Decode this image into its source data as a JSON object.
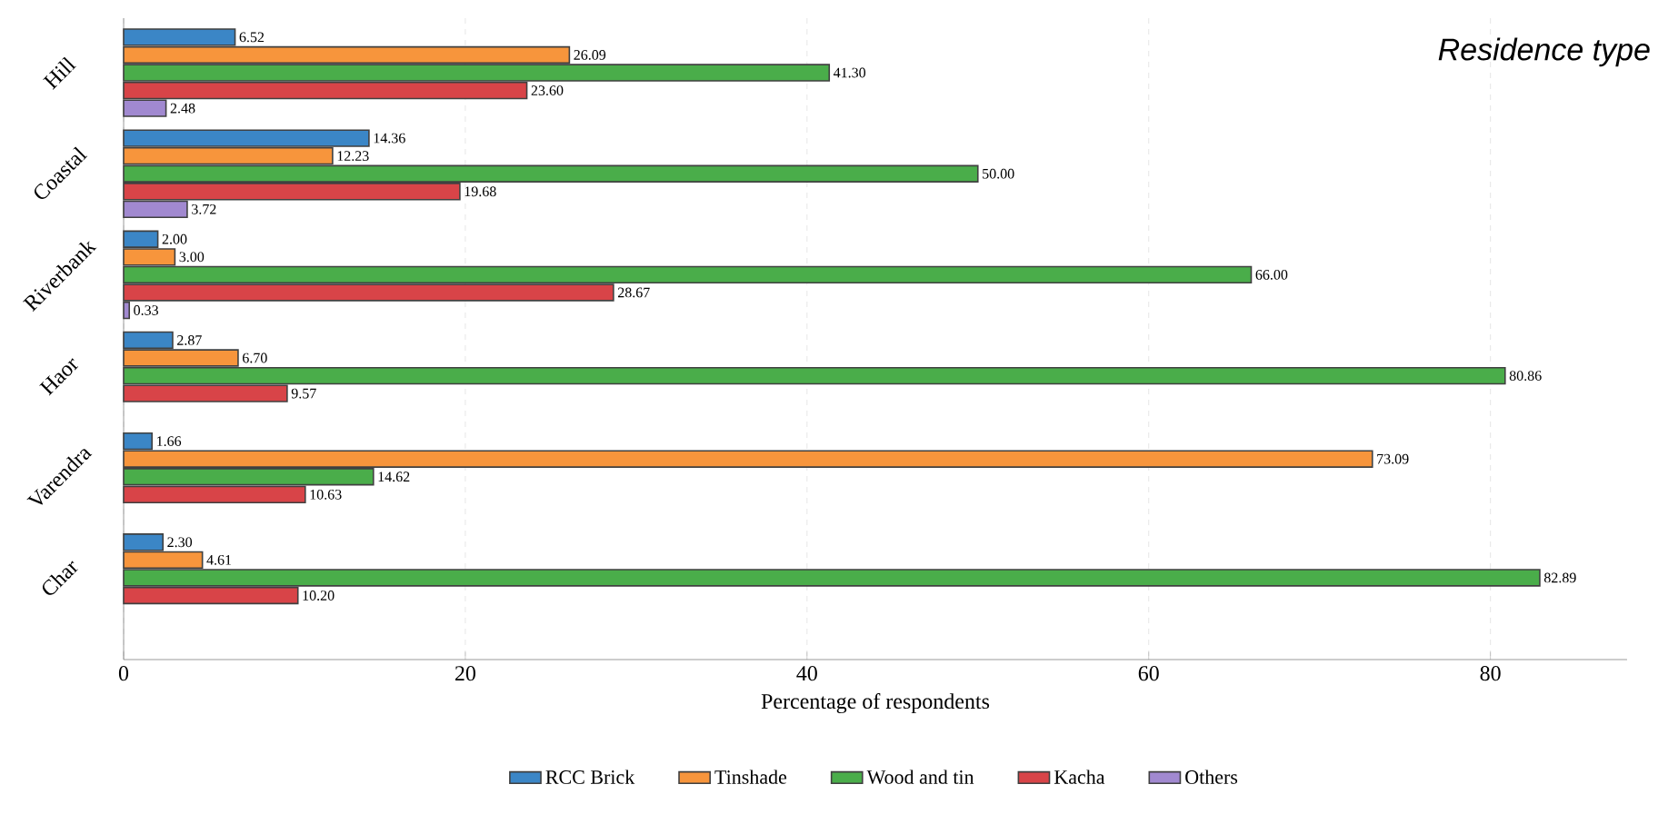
{
  "chart_data": {
    "type": "bar",
    "orientation": "horizontal",
    "title": "Residence type",
    "xlabel": "Percentage of respondents",
    "categories": [
      "Hill",
      "Coastal",
      "Riverbank",
      "Haor",
      "Varendra",
      "Char"
    ],
    "series": [
      {
        "name": "RCC Brick",
        "color": "#3b86c6",
        "values": [
          6.52,
          14.36,
          2.0,
          2.87,
          1.66,
          2.3
        ],
        "value_labels": [
          "6.52",
          "14.36",
          "2.00",
          "2.87",
          "1.66",
          "2.30"
        ]
      },
      {
        "name": "Tinshade",
        "color": "#f7953c",
        "values": [
          26.09,
          12.23,
          3.0,
          6.7,
          73.09,
          4.61
        ],
        "value_labels": [
          "26.09",
          "12.23",
          "3.00",
          "6.70",
          "73.09",
          "4.61"
        ]
      },
      {
        "name": "Wood and tin",
        "color": "#4aad4a",
        "values": [
          41.3,
          50.0,
          66.0,
          80.86,
          14.62,
          82.89
        ],
        "value_labels": [
          "41.30",
          "50.00",
          "66.00",
          "80.86",
          "14.62",
          "82.89"
        ]
      },
      {
        "name": "Kacha",
        "color": "#d84448",
        "values": [
          23.6,
          19.68,
          28.67,
          9.57,
          10.63,
          10.2
        ],
        "value_labels": [
          "23.60",
          "19.68",
          "28.67",
          "9.57",
          "10.63",
          "10.20"
        ]
      },
      {
        "name": "Others",
        "color": "#a189d0",
        "values": [
          2.48,
          3.72,
          0.33,
          null,
          null,
          null
        ],
        "value_labels": [
          "2.48",
          "3.72",
          "0.33",
          null,
          null,
          null
        ]
      }
    ],
    "xlim": [
      0,
      88
    ],
    "xticks": [
      0,
      20,
      40,
      60,
      80
    ],
    "grid": "x",
    "legend": "bottom"
  }
}
